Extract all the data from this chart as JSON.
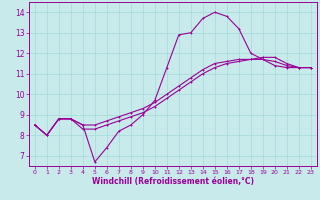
{
  "bg_color": "#c8eaea",
  "line_color": "#990099",
  "grid_color": "#aadddd",
  "xlabel": "Windchill (Refroidissement éolien,°C)",
  "xlabel_color": "#990099",
  "tick_color": "#990099",
  "ylim": [
    6.5,
    14.5
  ],
  "xlim": [
    -0.5,
    23.5
  ],
  "yticks": [
    7,
    8,
    9,
    10,
    11,
    12,
    13,
    14
  ],
  "xticks": [
    0,
    1,
    2,
    3,
    4,
    5,
    6,
    7,
    8,
    9,
    10,
    11,
    12,
    13,
    14,
    15,
    16,
    17,
    18,
    19,
    20,
    21,
    22,
    23
  ],
  "line1_x": [
    0,
    1,
    2,
    3,
    4,
    5,
    6,
    7,
    8,
    9,
    10,
    11,
    12,
    13,
    14,
    15,
    16,
    17,
    18,
    19,
    20,
    21,
    22,
    23
  ],
  "line1_y": [
    8.5,
    8.0,
    8.8,
    8.8,
    8.5,
    6.7,
    7.4,
    8.2,
    8.5,
    9.0,
    9.7,
    11.3,
    12.9,
    13.0,
    13.7,
    14.0,
    13.8,
    13.2,
    12.0,
    11.7,
    11.4,
    11.3,
    11.3,
    11.3
  ],
  "line2_x": [
    0,
    1,
    2,
    3,
    4,
    5,
    6,
    7,
    8,
    9,
    10,
    11,
    12,
    13,
    14,
    15,
    16,
    17,
    18,
    19,
    20,
    21,
    22,
    23
  ],
  "line2_y": [
    8.5,
    8.0,
    8.8,
    8.8,
    8.5,
    8.5,
    8.7,
    8.9,
    9.1,
    9.3,
    9.6,
    10.0,
    10.4,
    10.8,
    11.2,
    11.5,
    11.6,
    11.7,
    11.7,
    11.7,
    11.6,
    11.4,
    11.3,
    11.3
  ],
  "line3_x": [
    0,
    1,
    2,
    3,
    4,
    5,
    6,
    7,
    8,
    9,
    10,
    11,
    12,
    13,
    14,
    15,
    16,
    17,
    18,
    19,
    20,
    21,
    22,
    23
  ],
  "line3_y": [
    8.5,
    8.0,
    8.8,
    8.8,
    8.3,
    8.3,
    8.5,
    8.7,
    8.9,
    9.1,
    9.4,
    9.8,
    10.2,
    10.6,
    11.0,
    11.3,
    11.5,
    11.6,
    11.7,
    11.8,
    11.8,
    11.5,
    11.3,
    11.3
  ],
  "xtick_fontsize": 4.5,
  "ytick_fontsize": 5.5,
  "xlabel_fontsize": 5.5,
  "lw": 0.8,
  "ms": 2.0,
  "mew": 0.7
}
